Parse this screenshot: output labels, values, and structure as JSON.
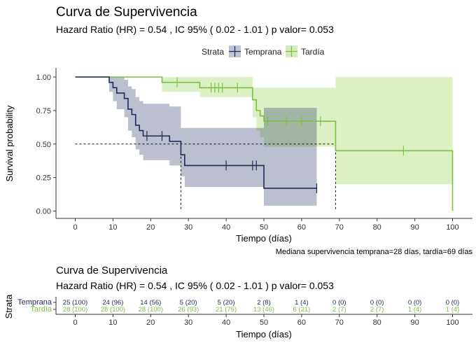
{
  "chart_data": {
    "type": "line",
    "subtype": "kaplan-meier",
    "title": "Curva de Supervivencia",
    "subtitle": "Hazard Ratio (HR) =  0.54 , IC 95% ( 0.02  -  1.01 ) p valor= 0.053",
    "xlabel": "Tiempo (días)",
    "ylabel": "Survival probability",
    "xlim": [
      -5,
      105
    ],
    "ylim": [
      -0.04,
      1.06
    ],
    "x_ticks": [
      0,
      10,
      20,
      30,
      40,
      50,
      60,
      70,
      80,
      90,
      100
    ],
    "y_ticks": [
      0.0,
      0.25,
      0.5,
      0.75,
      1.0
    ],
    "y_tick_labels": [
      "0.00",
      "0.25",
      "0.50",
      "0.75",
      "1.00"
    ],
    "legend": {
      "title": "Strata",
      "position": "top"
    },
    "series": [
      {
        "name": "Temprana",
        "color": "#1f2a5c",
        "band_color": "#1f2a5c",
        "steps": [
          [
            0,
            1.0
          ],
          [
            9,
            0.96
          ],
          [
            10,
            0.92
          ],
          [
            11,
            0.88
          ],
          [
            13,
            0.84
          ],
          [
            14,
            0.76
          ],
          [
            15,
            0.72
          ],
          [
            16,
            0.64
          ],
          [
            17,
            0.6
          ],
          [
            18,
            0.56
          ],
          [
            25,
            0.52
          ],
          [
            28,
            0.42
          ],
          [
            29,
            0.34
          ],
          [
            50,
            0.17
          ],
          [
            64,
            0.17
          ]
        ],
        "lower": [
          [
            0,
            1.0
          ],
          [
            9,
            0.89
          ],
          [
            10,
            0.82
          ],
          [
            11,
            0.76
          ],
          [
            13,
            0.7
          ],
          [
            14,
            0.6
          ],
          [
            15,
            0.55
          ],
          [
            16,
            0.46
          ],
          [
            17,
            0.42
          ],
          [
            18,
            0.38
          ],
          [
            25,
            0.34
          ],
          [
            28,
            0.26
          ],
          [
            29,
            0.18
          ],
          [
            50,
            0.04
          ],
          [
            64,
            0.04
          ]
        ],
        "upper": [
          [
            0,
            1.0
          ],
          [
            9,
            1.0
          ],
          [
            10,
            1.0
          ],
          [
            11,
            1.0
          ],
          [
            13,
            0.98
          ],
          [
            14,
            0.93
          ],
          [
            15,
            0.91
          ],
          [
            16,
            0.85
          ],
          [
            17,
            0.82
          ],
          [
            18,
            0.8
          ],
          [
            25,
            0.78
          ],
          [
            28,
            0.62
          ],
          [
            29,
            0.62
          ],
          [
            50,
            0.77
          ],
          [
            64,
            0.77
          ]
        ],
        "censor_x": [
          19,
          23,
          40,
          47,
          48,
          64
        ],
        "median": 28
      },
      {
        "name": "Tardía",
        "color": "#7ac143",
        "band_color": "#a6d96a",
        "steps": [
          [
            0,
            1.0
          ],
          [
            23,
            0.96
          ],
          [
            33,
            0.92
          ],
          [
            47,
            0.83
          ],
          [
            48,
            0.75
          ],
          [
            49,
            0.71
          ],
          [
            50,
            0.67
          ],
          [
            69,
            0.45
          ],
          [
            100,
            0.0
          ]
        ],
        "lower": [
          [
            0,
            1.0
          ],
          [
            23,
            0.89
          ],
          [
            33,
            0.85
          ],
          [
            47,
            0.7
          ],
          [
            48,
            0.6
          ],
          [
            49,
            0.55
          ],
          [
            50,
            0.48
          ],
          [
            69,
            0.2
          ],
          [
            100,
            0.2
          ]
        ],
        "upper": [
          [
            0,
            1.0
          ],
          [
            23,
            1.0
          ],
          [
            33,
            1.0
          ],
          [
            47,
            0.92
          ],
          [
            48,
            0.92
          ],
          [
            49,
            0.92
          ],
          [
            50,
            0.92
          ],
          [
            69,
            1.0
          ],
          [
            100,
            1.0
          ]
        ],
        "censor_x": [
          27,
          36,
          37,
          38,
          39,
          43,
          51,
          56,
          60,
          65,
          87
        ],
        "median": 69
      }
    ],
    "median_line_y": 0.5,
    "annotation": "Mediana supervivencia temprana=28 días, tardía=69 días",
    "risk_table": {
      "title": "Curva de Supervivencia",
      "subtitle": "Hazard Ratio (HR) =  0.54 , IC 95% ( 0.02  -  1.01 ) p valor= 0.053",
      "ylabel": "Strata",
      "xlabel": "Tiempo (días)",
      "times": [
        0,
        10,
        20,
        30,
        40,
        50,
        60,
        70,
        80,
        90,
        100
      ],
      "rows": [
        {
          "name": "Temprana",
          "color": "#1f2a5c",
          "values": [
            "25 (100)",
            "24 (96)",
            "14 (56)",
            "5 (20)",
            "5 (20)",
            "2 (8)",
            "1 (4)",
            "0 (0)",
            "0 (0)",
            "0 (0)",
            "0 (0)"
          ]
        },
        {
          "name": "Tardía",
          "color": "#7ac143",
          "values": [
            "28 (100)",
            "28 (100)",
            "28 (100)",
            "26 (93)",
            "21 (75)",
            "13 (46)",
            "6 (21)",
            "2 (7)",
            "2 (7)",
            "1 (4)",
            "1 (4)"
          ]
        }
      ]
    }
  }
}
